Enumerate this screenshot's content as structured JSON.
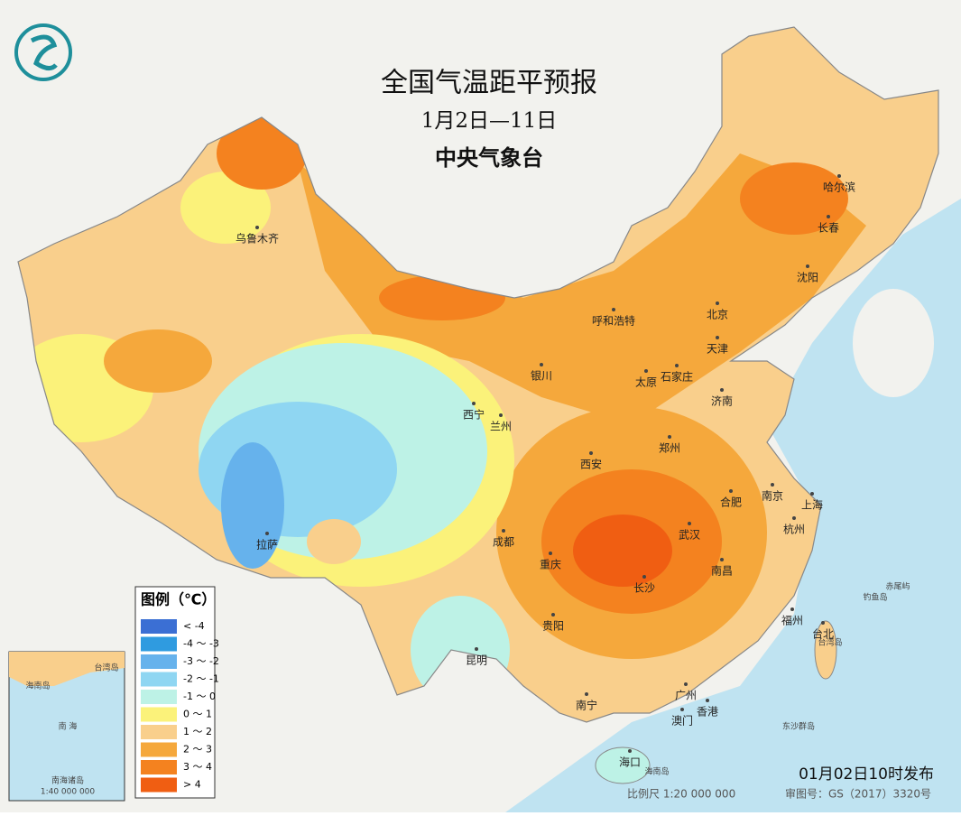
{
  "header": {
    "title": "全国气温距平预报",
    "period": "1月2日—11日",
    "agency": "中央气象台"
  },
  "legend": {
    "title": "图例（℃）",
    "items": [
      {
        "label": "< -4",
        "color": "#3b6fd4"
      },
      {
        "label": "-4 ～ -3",
        "color": "#2f9be0"
      },
      {
        "label": "-3 ～ -2",
        "color": "#66b2ec"
      },
      {
        "label": "-2 ～ -1",
        "color": "#8fd6f2"
      },
      {
        "label": "-1 ～ 0",
        "color": "#bdf2e6"
      },
      {
        "label": "0 ～ 1",
        "color": "#fbf27a"
      },
      {
        "label": "1 ～ 2",
        "color": "#f9cf8c"
      },
      {
        "label": "2 ～ 3",
        "color": "#f5a83c"
      },
      {
        "label": "3 ～ 4",
        "color": "#f4821f"
      },
      {
        "label": "> 4",
        "color": "#f05e12"
      }
    ]
  },
  "cities": [
    "乌鲁木齐",
    "哈尔滨",
    "长春",
    "沈阳",
    "呼和浩特",
    "北京",
    "天津",
    "银川",
    "太原",
    "石家庄",
    "济南",
    "西宁",
    "兰州",
    "郑州",
    "西安",
    "合肥",
    "南京",
    "上海",
    "成都",
    "重庆",
    "武汉",
    "杭州",
    "拉萨",
    "南昌",
    "长沙",
    "贵阳",
    "福州",
    "台北",
    "昆明",
    "南宁",
    "广州",
    "香港",
    "澳门",
    "海口"
  ],
  "islands": [
    "钓鱼岛",
    "赤尾屿",
    "台湾岛",
    "海南岛",
    "东沙群岛"
  ],
  "inset": {
    "labels": [
      "台湾岛",
      "海南岛",
      "南 海",
      "南海诸岛"
    ],
    "scale": "1:40 000 000"
  },
  "footer": {
    "issued": "01月02日10时发布",
    "scale": "比例尺 1:20 000 000",
    "review": "审图号：GS（2017）3320号"
  }
}
